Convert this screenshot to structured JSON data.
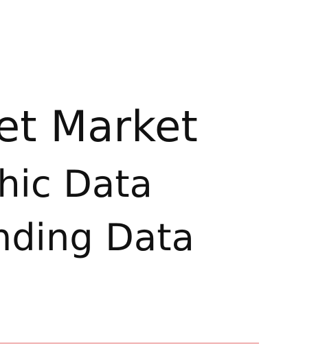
{
  "slide": {
    "title_lines": [
      "et Market",
      "hic Data",
      "nding Data"
    ],
    "rule_color": "#e36a6a"
  }
}
